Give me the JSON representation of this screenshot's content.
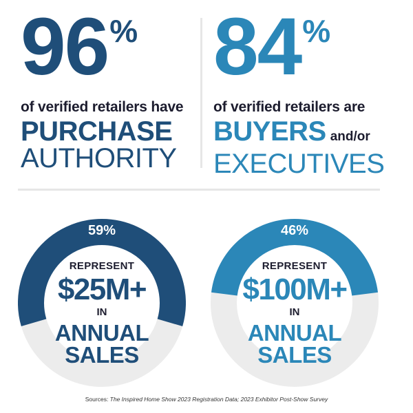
{
  "stats": {
    "left": {
      "number": "96",
      "percent": "%",
      "line1": "of verified retailers have",
      "line2": "PURCHASE",
      "line3": "AUTHORITY"
    },
    "right": {
      "number": "84",
      "percent": "%",
      "line1": "of verified retailers are",
      "line2": "BUYERS",
      "line2_suffix": "and/or",
      "line3": "EXECUTIVES"
    }
  },
  "donuts": [
    {
      "percent_label": "59%",
      "percent_value": 59,
      "represent": "REPRESENT",
      "amount": "$25M+",
      "in": "IN",
      "annual": "ANNUAL",
      "sales": "SALES",
      "color": "#1f4e79"
    },
    {
      "percent_label": "46%",
      "percent_value": 46,
      "represent": "REPRESENT",
      "amount": "$100M+",
      "in": "IN",
      "annual": "ANNUAL",
      "sales": "SALES",
      "color": "#2b87b8"
    }
  ],
  "sources": {
    "prefix": "Sources: ",
    "text": "The Inspired Home Show 2023 Registration Data; 2023 Exhibitor Post-Show Survey"
  },
  "colors": {
    "navy": "#1f4e79",
    "teal": "#2b87b8",
    "track": "#ececec",
    "divider": "#e6e6e6"
  }
}
